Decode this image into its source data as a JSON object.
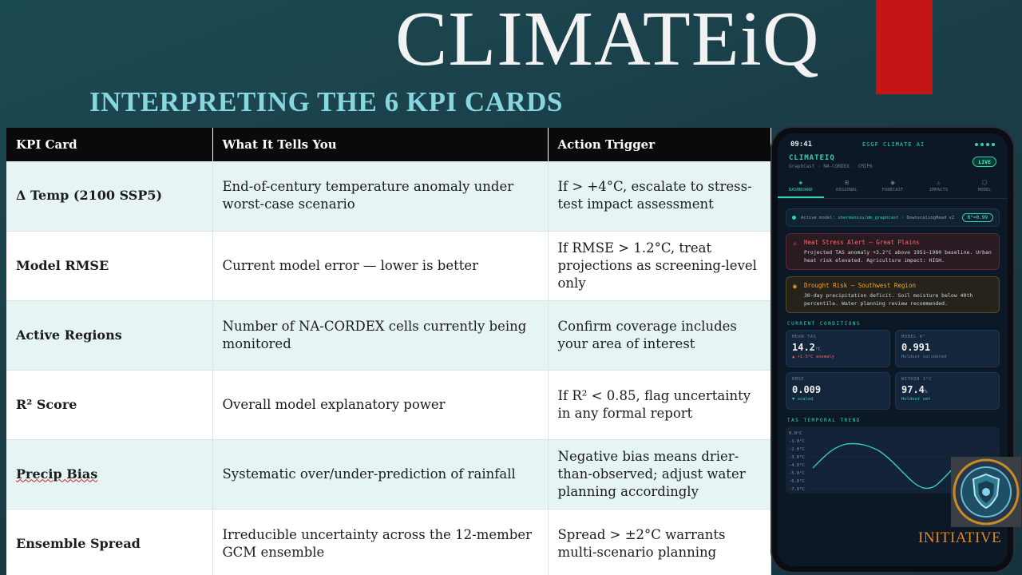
{
  "header": {
    "brand": "CLIMATEiQ",
    "subtitle": "INTERPRETING THE 6 KPI CARDS"
  },
  "table": {
    "columns": [
      "KPI Card",
      "What It Tells You",
      "Action Trigger"
    ],
    "rows": [
      {
        "kpi": "Δ Temp (2100 SSP5)",
        "meaning": "End-of-century temperature anomaly under worst-case scenario",
        "trigger": "If > +4°C, escalate to stress-test impact assessment"
      },
      {
        "kpi": "Model RMSE",
        "meaning": "Current model error — lower is better",
        "trigger": "If RMSE > 1.2°C, treat projections as screening-level only"
      },
      {
        "kpi": "Active Regions",
        "meaning": "Number of NA-CORDEX cells currently being monitored",
        "trigger": "Confirm coverage includes your area of interest"
      },
      {
        "kpi": "R² Score",
        "meaning": "Overall model explanatory power",
        "trigger": "If R² < 0.85, flag uncertainty in any formal report"
      },
      {
        "kpi": "Precip Bias",
        "meaning": "Systematic over/under-prediction of rainfall",
        "trigger": "Negative bias means drier-than-observed; adjust water planning accordingly"
      },
      {
        "kpi": "Ensemble Spread",
        "meaning": "Irreducible uncertainty across the 12-member GCM ensemble",
        "trigger": "Spread > ±2°C warrants multi-scenario planning"
      }
    ]
  },
  "phone": {
    "status": {
      "time": "09:41",
      "center": "ESGF CLIMATE AI"
    },
    "app": {
      "name": "CLIMATEIQ",
      "sub": "GraphCast · NA-CORDEX · CMIP6",
      "live": "LIVE"
    },
    "tabs": [
      {
        "label": "DASHBOARD",
        "icon": "◈"
      },
      {
        "label": "REGIONAL",
        "icon": "⊞"
      },
      {
        "label": "FORECAST",
        "icon": "◉"
      },
      {
        "label": "IMPACTS",
        "icon": "⚠"
      },
      {
        "label": "MODEL",
        "icon": "⬡"
      }
    ],
    "model_bar": {
      "prefix": "Active model: ",
      "model": "shermansiu/dm_graphcast",
      "suffix": " · DownscalingHead v2",
      "r2": "R²=0.99"
    },
    "alerts": [
      {
        "title": "Heat Stress Alert — Great Plains",
        "body": "Projected TAS anomaly +3.2°C above 1951–1980 baseline. Urban heat risk elevated. Agriculture impact: HIGH.",
        "icon": "⚠"
      },
      {
        "title": "Drought Risk — Southwest Region",
        "body": "30-day precipitation deficit. Soil moisture below 40th percentile. Water planning review recommended.",
        "icon": "◉"
      }
    ],
    "conditions_label": "CURRENT CONDITIONS",
    "cards": [
      {
        "label": "MEAN TAS",
        "value": "14.2",
        "unit": "°C",
        "note": "▲ +1.5°C anomaly"
      },
      {
        "label": "MODEL R²",
        "value": "0.991",
        "unit": "",
        "note": "Holdout validated"
      },
      {
        "label": "RMSE",
        "value": "0.009",
        "unit": "",
        "note": "▼ scaled"
      },
      {
        "label": "WITHIN 1°C",
        "value": "97.4",
        "unit": "%",
        "note": "Holdout set"
      }
    ],
    "trend": {
      "label": "TAS TEMPORAL TREND",
      "y_ticks": [
        "0.0°C",
        "-1.0°C",
        "-2.0°C",
        "-3.0°C",
        "-4.0°C",
        "-5.0°C",
        "-6.0°C",
        "-7.0°C"
      ]
    }
  },
  "footer": {
    "initiative": "INITIATIVE"
  },
  "colors": {
    "accent": "#2fd3b4",
    "alert_red": "#ff6a6a",
    "alert_amber": "#f5a623",
    "brand_red": "#c41414",
    "subtitle": "#87d6e0"
  }
}
